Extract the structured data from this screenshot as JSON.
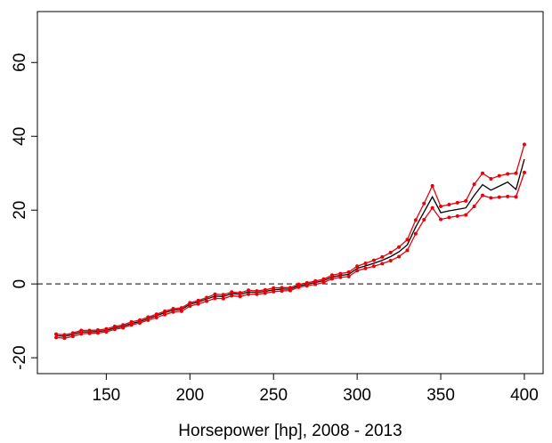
{
  "chart_data": {
    "type": "line",
    "x_label": "Horsepower [hp], 2008 - 2013",
    "x": [
      120,
      125,
      130,
      135,
      140,
      145,
      150,
      155,
      160,
      165,
      170,
      175,
      180,
      185,
      190,
      195,
      200,
      205,
      210,
      215,
      220,
      225,
      230,
      235,
      240,
      245,
      250,
      255,
      260,
      265,
      270,
      275,
      280,
      285,
      290,
      295,
      300,
      305,
      310,
      315,
      320,
      325,
      330,
      335,
      340,
      345,
      350,
      355,
      360,
      365,
      370,
      375,
      380,
      385,
      390,
      395,
      400
    ],
    "series": [
      {
        "color": "#000000",
        "markers": false,
        "values": [
          -14,
          -14.2,
          -13.7,
          -13,
          -13,
          -12.9,
          -12.6,
          -11.9,
          -11.5,
          -10.7,
          -10.2,
          -9.4,
          -8.6,
          -7.8,
          -7.1,
          -6.9,
          -5.5,
          -4.9,
          -4.1,
          -3.3,
          -3.4,
          -2.6,
          -2.8,
          -2.2,
          -2.3,
          -2,
          -1.6,
          -1.4,
          -1.4,
          -0.5,
          -0.1,
          0.4,
          0.9,
          1.9,
          2.3,
          2.6,
          4.2,
          4.9,
          5.6,
          6.4,
          7.4,
          8.7,
          10.6,
          15.4,
          19.5,
          23.6,
          19.3,
          19.8,
          20.2,
          20.6,
          24,
          26.9,
          25.4,
          26.5,
          27.6,
          25.6,
          33.8
        ]
      },
      {
        "color": "#e8000b",
        "markers": true,
        "values": [
          -13.6,
          -13.8,
          -13.3,
          -12.6,
          -12.6,
          -12.5,
          -12.2,
          -11.5,
          -11.1,
          -10.3,
          -9.8,
          -9,
          -8.2,
          -7.4,
          -6.7,
          -6.5,
          -5.1,
          -4.5,
          -3.7,
          -2.8,
          -2.9,
          -2.2,
          -2.4,
          -1.7,
          -1.9,
          -1.6,
          -1.1,
          -1,
          -1,
          -0.1,
          0.3,
          0.8,
          1.3,
          2.4,
          2.8,
          3.2,
          4.8,
          5.6,
          6.4,
          7.3,
          8.5,
          10,
          12,
          17.3,
          21.8,
          26.6,
          21,
          21.5,
          22,
          22.5,
          27,
          30,
          28.5,
          29.3,
          29.8,
          30,
          37.8
        ]
      },
      {
        "color": "#e8000b",
        "markers": true,
        "values": [
          -14.5,
          -14.7,
          -14.2,
          -13.5,
          -13.4,
          -13.3,
          -13,
          -12.3,
          -11.9,
          -11.1,
          -10.6,
          -9.8,
          -9.1,
          -8.3,
          -7.6,
          -7.4,
          -6,
          -5.4,
          -4.7,
          -3.9,
          -4,
          -3.2,
          -3.4,
          -2.8,
          -2.8,
          -2.5,
          -2.1,
          -1.9,
          -1.8,
          -0.9,
          -0.5,
          -0.1,
          0.4,
          1.4,
          1.8,
          2,
          3.6,
          4.2,
          4.8,
          5.5,
          6.3,
          7.4,
          9.1,
          13.6,
          17.4,
          20.6,
          17.5,
          18,
          18.4,
          18.7,
          21,
          24,
          23.3,
          23.5,
          23.7,
          23.6,
          30.2
        ]
      }
    ],
    "xlim": [
      108.8,
      411.2
    ],
    "xticks": [
      150,
      200,
      250,
      300,
      350,
      400
    ],
    "ylim": [
      -24.3,
      73.8
    ],
    "yticks": [
      -20,
      0,
      20,
      40,
      60
    ],
    "hline": 0
  }
}
